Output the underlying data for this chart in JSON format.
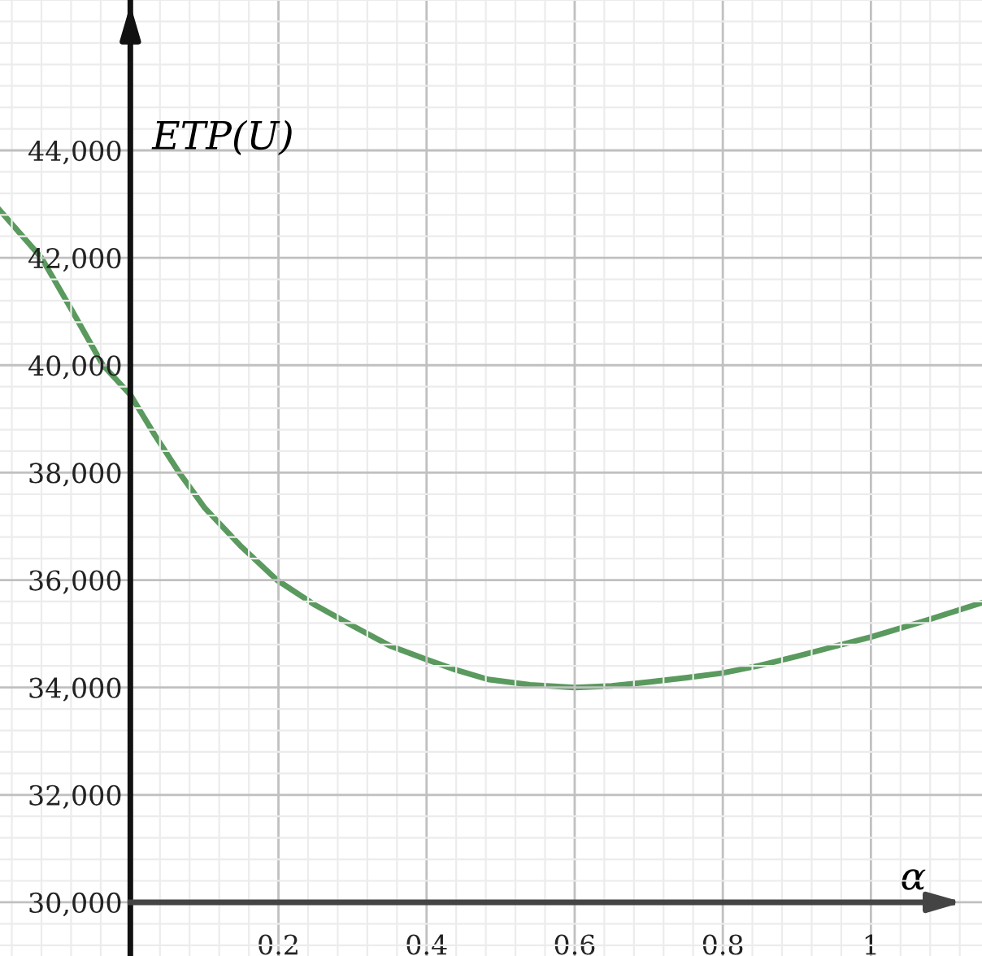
{
  "chart_data": {
    "type": "line",
    "xlabel": "α",
    "ylabel": "ETP(U)",
    "x": [
      -0.176,
      -0.12,
      -0.08,
      -0.037,
      0,
      0.033,
      0.066,
      0.1,
      0.15,
      0.198,
      0.25,
      0.3,
      0.35,
      0.4,
      0.439,
      0.483,
      0.54,
      0.6,
      0.65,
      0.7,
      0.75,
      0.8,
      0.85,
      0.9,
      0.95,
      1.0,
      1.075,
      1.15
    ],
    "series": [
      {
        "color": "#5a9a5e",
        "values": [
          42880,
          42000,
          41050,
          40000,
          39450,
          38700,
          38000,
          37350,
          36620,
          36000,
          35530,
          35150,
          34780,
          34520,
          34330,
          34150,
          34050,
          34000,
          34030,
          34100,
          34180,
          34270,
          34410,
          34580,
          34760,
          34940,
          35250,
          35580
        ]
      }
    ],
    "xlim": [
      -0.176,
      1.15
    ],
    "ylim": [
      29000,
      46800
    ],
    "xticks": [
      0.2,
      0.4,
      0.6,
      0.8,
      1
    ],
    "yticks": [
      {
        "value": 30000,
        "label": "30,000"
      },
      {
        "value": 32000,
        "label": "32,000"
      },
      {
        "value": 34000,
        "label": "34,000"
      },
      {
        "value": 36000,
        "label": "36,000"
      },
      {
        "value": 38000,
        "label": "38,000"
      },
      {
        "value": 40000,
        "label": "40,000"
      },
      {
        "value": 42000,
        "label": "42,000"
      },
      {
        "value": 44000,
        "label": "44,000"
      }
    ],
    "ref_lines": [
      {
        "axis": "y",
        "value": 30000,
        "color": "#444444"
      }
    ],
    "grid": true,
    "marker": "none",
    "line_style": "solid"
  }
}
